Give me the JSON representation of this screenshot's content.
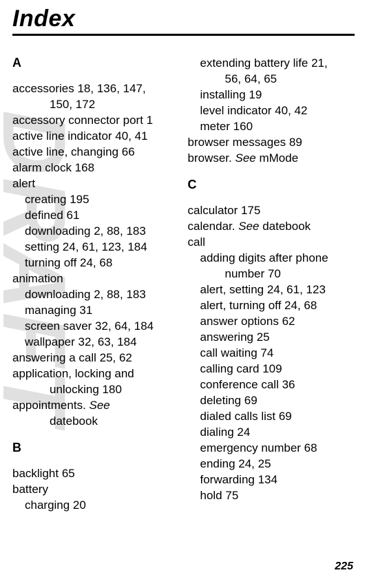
{
  "watermark": "DRAFT",
  "title": "Index",
  "pagenum": "225",
  "col1": {
    "letterA": "A",
    "a1": "accessories  18, 136, 147,",
    "a1b": "150, 172",
    "a2": "accessory connector port  1",
    "a3": "active line indicator  40, 41",
    "a4": "active line, changing  66",
    "a5": "alarm clock  168",
    "a6": "alert",
    "a6a": "creating  195",
    "a6b": "defined  61",
    "a6c": "downloading  2, 88, 183",
    "a6d": "setting  24, 61, 123, 184",
    "a6e": "turning off  24, 68",
    "a7": "animation",
    "a7a": "downloading  2, 88, 183",
    "a7b": "managing  31",
    "a7c": "screen saver  32, 64, 184",
    "a7d": "wallpaper  32, 63, 184",
    "a8": "answering a call  25, 62",
    "a9": "application, locking and",
    "a9b": "unlocking  180",
    "a10a": "appointments. ",
    "a10see": "See",
    "a10b": "datebook",
    "letterB": "B",
    "b1": "backlight  65",
    "b2": "battery",
    "b2a": "charging  20"
  },
  "col2": {
    "b2b": "extending battery life  21,",
    "b2bb": "56, 64, 65",
    "b2c": "installing  19",
    "b2d": "level indicator  40, 42",
    "b2e": "meter  160",
    "b3": "browser messages  89",
    "b4a": "browser. ",
    "b4see": "See",
    "b4b": " mMode",
    "letterC": "C",
    "c1": "calculator  175",
    "c2a": "calendar. ",
    "c2see": "See",
    "c2b": " datebook",
    "c3": "call",
    "c3a": "adding digits after phone",
    "c3ab": "number  70",
    "c3b": "alert, setting  24, 61, 123",
    "c3c": "alert, turning off  24, 68",
    "c3d": "answer options  62",
    "c3e": "answering  25",
    "c3f": "call waiting  74",
    "c3g": "calling card  109",
    "c3h": "conference call  36",
    "c3i": "deleting  69",
    "c3j": "dialed calls list  69",
    "c3k": "dialing  24",
    "c3l": "emergency number  68",
    "c3m": "ending  24, 25",
    "c3n": "forwarding  134",
    "c3o": "hold  75"
  }
}
